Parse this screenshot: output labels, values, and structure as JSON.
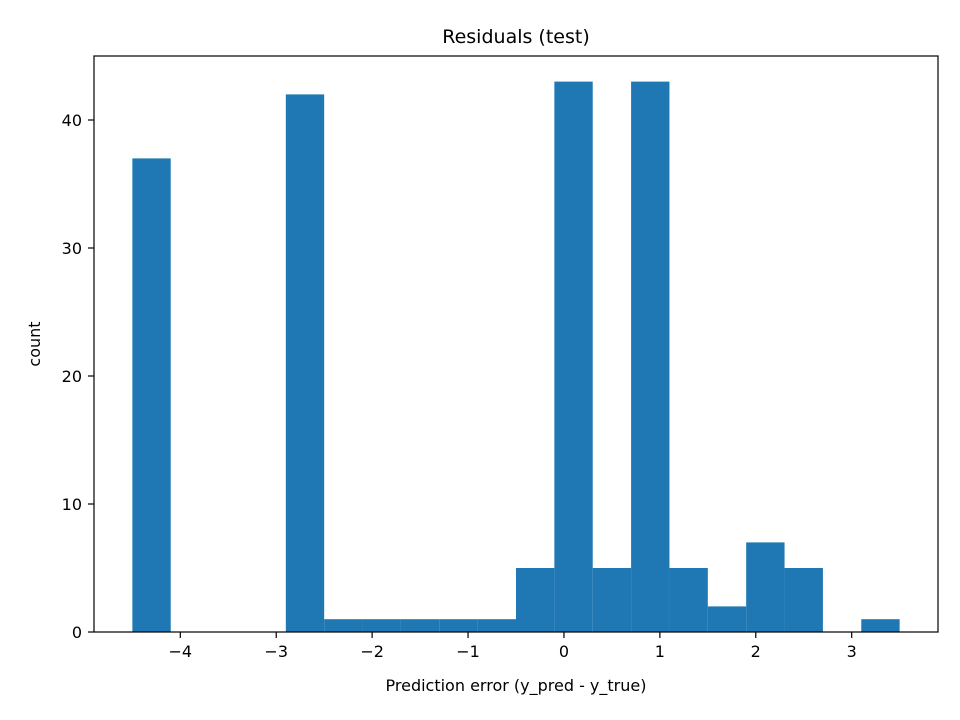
{
  "chart_data": {
    "type": "bar",
    "title": "Residuals (test)",
    "xlabel": "Prediction error (y_pred - y_true)",
    "ylabel": "count",
    "xlim": [
      -4.9,
      3.9
    ],
    "ylim": [
      0,
      45
    ],
    "bar_color": "#1f77b4",
    "grid": false,
    "bins": [
      {
        "x0": -4.5,
        "x1": -4.1,
        "count": 37
      },
      {
        "x0": -4.1,
        "x1": -3.7,
        "count": 0
      },
      {
        "x0": -3.7,
        "x1": -3.3,
        "count": 0
      },
      {
        "x0": -3.3,
        "x1": -2.9,
        "count": 0
      },
      {
        "x0": -2.9,
        "x1": -2.5,
        "count": 42
      },
      {
        "x0": -2.5,
        "x1": -2.1,
        "count": 1
      },
      {
        "x0": -2.1,
        "x1": -1.7,
        "count": 1
      },
      {
        "x0": -1.7,
        "x1": -1.3,
        "count": 1
      },
      {
        "x0": -1.3,
        "x1": -0.9,
        "count": 1
      },
      {
        "x0": -0.9,
        "x1": -0.5,
        "count": 1
      },
      {
        "x0": -0.5,
        "x1": -0.1,
        "count": 5
      },
      {
        "x0": -0.1,
        "x1": 0.3,
        "count": 43
      },
      {
        "x0": 0.3,
        "x1": 0.7,
        "count": 5
      },
      {
        "x0": 0.7,
        "x1": 1.1,
        "count": 43
      },
      {
        "x0": 1.1,
        "x1": 1.5,
        "count": 5
      },
      {
        "x0": 1.5,
        "x1": 1.9,
        "count": 2
      },
      {
        "x0": 1.9,
        "x1": 2.3,
        "count": 7
      },
      {
        "x0": 2.3,
        "x1": 2.7,
        "count": 5
      },
      {
        "x0": 2.7,
        "x1": 3.1,
        "count": 0
      },
      {
        "x0": 3.1,
        "x1": 3.5,
        "count": 1
      }
    ],
    "x_ticks": [
      -4,
      -3,
      -2,
      -1,
      0,
      1,
      2,
      3
    ],
    "x_tick_labels": [
      "−4",
      "−3",
      "−2",
      "−1",
      "0",
      "1",
      "2",
      "3"
    ],
    "y_ticks": [
      0,
      10,
      20,
      30,
      40
    ],
    "y_tick_labels": [
      "0",
      "10",
      "20",
      "30",
      "40"
    ]
  }
}
